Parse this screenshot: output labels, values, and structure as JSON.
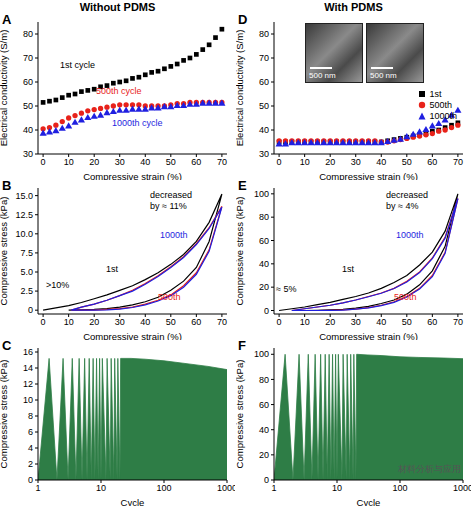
{
  "column_titles": [
    "Without PDMS",
    "With PDMS"
  ],
  "watermark": "材料分析与应用",
  "chart_data": [
    {
      "panel": "A",
      "type": "scatter",
      "x_label": "Compressive strain (%)",
      "y_label": "Electrical conductivity (S/m)",
      "xlim": [
        -2,
        72
      ],
      "ylim": [
        30,
        85
      ],
      "xticks": [
        0,
        10,
        20,
        30,
        40,
        50,
        60,
        70
      ],
      "yticks": [
        30,
        40,
        50,
        60,
        70,
        80
      ],
      "annotations": [
        {
          "text": "1st cycle",
          "color": "#000000"
        },
        {
          "text": "500th cycle",
          "color": "#e8221a"
        },
        {
          "text": "1000th cycle",
          "color": "#1f1fe0"
        }
      ],
      "series": [
        {
          "color": "#000000",
          "marker": "square",
          "x": [
            0,
            2.5,
            5,
            7.5,
            10,
            12.5,
            15,
            17.5,
            20,
            22.5,
            25,
            27.5,
            30,
            32.5,
            35,
            37.5,
            40,
            42.5,
            45,
            47.5,
            50,
            52.5,
            55,
            57.5,
            60,
            62.5,
            65,
            67.5,
            70
          ],
          "values": [
            51.5,
            52,
            52.5,
            53.5,
            54.5,
            55,
            56,
            56.5,
            57,
            58,
            58.5,
            59.5,
            60,
            60.5,
            61.5,
            62,
            63,
            64,
            64.5,
            65.5,
            66.5,
            67.5,
            69,
            70,
            71.5,
            73.5,
            75.5,
            78.5,
            82
          ]
        },
        {
          "color": "#e8221a",
          "marker": "circle",
          "x": [
            0,
            2.5,
            5,
            7.5,
            10,
            12.5,
            15,
            17.5,
            20,
            22.5,
            25,
            27.5,
            30,
            32.5,
            35,
            37.5,
            40,
            42.5,
            45,
            47.5,
            50,
            52.5,
            55,
            57.5,
            60,
            62.5,
            65,
            67.5,
            70
          ],
          "values": [
            40.5,
            41,
            42,
            43.5,
            45,
            46,
            47,
            48,
            48.5,
            49,
            49.5,
            50,
            50.5,
            50.5,
            50.5,
            50.5,
            50,
            50,
            50,
            50,
            50.5,
            51,
            51,
            51.5,
            51.5,
            51.5,
            51.5,
            51.5,
            51.5
          ]
        },
        {
          "color": "#1f1fe0",
          "marker": "triangle",
          "x": [
            0,
            2.5,
            5,
            7.5,
            10,
            12.5,
            15,
            17.5,
            20,
            22.5,
            25,
            27.5,
            30,
            32.5,
            35,
            37.5,
            40,
            42.5,
            45,
            47.5,
            50,
            52.5,
            55,
            57.5,
            60,
            62.5,
            65,
            67.5,
            70
          ],
          "values": [
            38.5,
            39,
            39.5,
            40.5,
            41.5,
            43,
            44,
            45,
            45.5,
            46,
            47,
            47.5,
            48,
            48,
            48.5,
            48.5,
            48.5,
            49,
            49,
            49.5,
            49.5,
            50,
            50,
            50.5,
            50.5,
            51,
            51,
            51,
            51
          ]
        }
      ]
    },
    {
      "panel": "B",
      "type": "line",
      "x_label": "Compressive strain (%)",
      "y_label": "Compressive stress (kPa)",
      "xlim": [
        -2,
        72
      ],
      "ylim": [
        -0.5,
        16
      ],
      "xticks": [
        0,
        10,
        20,
        30,
        40,
        50,
        60,
        70
      ],
      "yticks": [
        0,
        {
          "value": 2.5,
          "label": "2.5"
        },
        {
          "value": 5,
          "label": "5.0"
        },
        {
          "value": 7.5,
          "label": "7.5"
        },
        {
          "value": 10,
          "label": "10.0"
        },
        {
          "value": 12.5,
          "label": "12.5"
        },
        {
          "value": 15,
          "label": "15.0"
        }
      ],
      "annotations": [
        {
          "text": "decreased by ≈ 11%",
          "color": "#000000"
        },
        {
          "text": ">10%",
          "color": "#000000"
        },
        {
          "text": "1st",
          "color": "#000000"
        },
        {
          "text": "500th",
          "color": "#e8221a"
        },
        {
          "text": "1000th",
          "color": "#1f1fe0"
        }
      ],
      "series": [
        {
          "color": "#000000",
          "x": [
            0,
            5,
            10,
            15,
            20,
            25,
            30,
            35,
            40,
            45,
            50,
            55,
            60,
            65,
            70,
            65,
            60,
            55,
            50,
            45,
            40,
            35,
            30,
            25,
            20,
            15,
            10
          ],
          "values": [
            0,
            0.3,
            0.6,
            1,
            1.5,
            2,
            2.6,
            3.2,
            4,
            4.9,
            6,
            7.3,
            9,
            11.5,
            15.2,
            9,
            5.6,
            3.8,
            2.6,
            1.7,
            1.1,
            0.7,
            0.4,
            0.2,
            0.1,
            0.05,
            0
          ]
        },
        {
          "color": "#e8221a",
          "x": [
            11,
            15,
            20,
            25,
            30,
            35,
            40,
            45,
            50,
            55,
            60,
            65,
            70,
            65,
            60,
            55,
            50,
            45,
            40,
            35,
            30,
            25,
            20,
            15,
            11
          ],
          "values": [
            0,
            0.4,
            0.8,
            1.3,
            1.9,
            2.6,
            3.5,
            4.5,
            5.7,
            7,
            8.7,
            10.8,
            13.6,
            7.9,
            4.9,
            3.2,
            2,
            1.3,
            0.8,
            0.4,
            0.2,
            0.1,
            0,
            0,
            0
          ]
        },
        {
          "color": "#1f1fe0",
          "x": [
            11,
            15,
            20,
            25,
            30,
            35,
            40,
            45,
            50,
            55,
            60,
            65,
            70,
            65,
            60,
            55,
            50,
            45,
            40,
            35,
            30,
            25,
            20,
            15,
            11
          ],
          "values": [
            0,
            0.4,
            0.8,
            1.3,
            1.9,
            2.5,
            3.4,
            4.4,
            5.6,
            6.9,
            8.6,
            10.7,
            13.5,
            7.7,
            4.7,
            3,
            1.9,
            1.2,
            0.7,
            0.35,
            0.15,
            0.05,
            0,
            0,
            0
          ]
        }
      ]
    },
    {
      "panel": "C",
      "type": "area",
      "log": "x",
      "x_label": "Cycle",
      "y_label": "Compressive stress (kPa)",
      "xlim": [
        1,
        1000
      ],
      "ylim": [
        0,
        16.5
      ],
      "xticks": [
        1,
        10,
        100,
        1000
      ],
      "yticks": [
        0,
        2,
        4,
        6,
        8,
        10,
        12,
        14,
        16
      ],
      "series": [
        {
          "color": "#2e7d46",
          "x": [
            1,
            1.5,
            2,
            2.5,
            3,
            3.5,
            4,
            4.5,
            5,
            5.5,
            6,
            6.5,
            7,
            7.5,
            8,
            8.5,
            9,
            9.5,
            10,
            10.5,
            12,
            12.5,
            14,
            14.5,
            16,
            16.5,
            18,
            18.5,
            20,
            20.5,
            30,
            50,
            100,
            200,
            500,
            1000
          ],
          "values": [
            0,
            15.2,
            0,
            15.2,
            0,
            15.2,
            0,
            15.2,
            0,
            15.2,
            0,
            15.2,
            0,
            15.2,
            0,
            15.2,
            0,
            15.2,
            0,
            15.2,
            0,
            15.2,
            0,
            15.2,
            0,
            15.2,
            0,
            15.2,
            0,
            15.2,
            15.2,
            15.1,
            14.9,
            14.6,
            14.2,
            13.8
          ]
        }
      ]
    },
    {
      "panel": "D",
      "type": "scatter",
      "x_label": "Compressive strain (%)",
      "y_label": "Electrical conductivity (S/m)",
      "xlim": [
        -2,
        72
      ],
      "ylim": [
        30,
        85
      ],
      "xticks": [
        0,
        10,
        20,
        30,
        40,
        50,
        60,
        70
      ],
      "yticks": [
        30,
        40,
        50,
        60,
        70,
        80
      ],
      "legend": "right",
      "insets": [
        "500 nm",
        "500 nm"
      ],
      "series": [
        {
          "name": "1st",
          "color": "#000000",
          "marker": "square",
          "x": [
            0,
            2.5,
            5,
            7.5,
            10,
            12.5,
            15,
            17.5,
            20,
            22.5,
            25,
            27.5,
            30,
            32.5,
            35,
            37.5,
            40,
            42.5,
            45,
            47.5,
            50,
            52.5,
            55,
            57.5,
            60,
            62.5,
            65,
            67.5,
            70
          ],
          "values": [
            35,
            35,
            35,
            35,
            35,
            35,
            35,
            35,
            35,
            35,
            35,
            35,
            35,
            35,
            35,
            35,
            35,
            35.5,
            36,
            36.5,
            37,
            37.5,
            38,
            38.5,
            39.5,
            40,
            41,
            42,
            43
          ]
        },
        {
          "name": "500th",
          "color": "#e8221a",
          "marker": "circle",
          "x": [
            0,
            2.5,
            5,
            7.5,
            10,
            12.5,
            15,
            17.5,
            20,
            22.5,
            25,
            27.5,
            30,
            32.5,
            35,
            37.5,
            40,
            42.5,
            45,
            47.5,
            50,
            52.5,
            55,
            57.5,
            60,
            62.5,
            65,
            67.5,
            70
          ],
          "values": [
            35.5,
            35.5,
            35.5,
            35.5,
            35.5,
            35.5,
            35.5,
            35.5,
            35.5,
            35.5,
            35.5,
            35.5,
            35.5,
            35.5,
            35.5,
            35.5,
            35,
            35,
            35.5,
            36,
            36.5,
            37,
            37.5,
            38,
            38.5,
            39.5,
            40,
            41,
            42
          ]
        },
        {
          "name": "1000th",
          "color": "#1f1fe0",
          "marker": "triangle",
          "x": [
            0,
            2.5,
            5,
            7.5,
            10,
            12.5,
            15,
            17.5,
            20,
            22.5,
            25,
            27.5,
            30,
            32.5,
            35,
            37.5,
            40,
            42.5,
            45,
            47.5,
            50,
            52.5,
            55,
            57.5,
            60,
            62.5,
            65,
            67.5,
            70
          ],
          "values": [
            34,
            34,
            34.5,
            34.5,
            34.5,
            34.5,
            34.5,
            34.5,
            34.5,
            34.5,
            34.5,
            34.5,
            34.5,
            34.5,
            34.5,
            34.5,
            34.5,
            35,
            35.5,
            36,
            37,
            38,
            39,
            40,
            41.5,
            42.5,
            44,
            46,
            48
          ]
        }
      ]
    },
    {
      "panel": "E",
      "type": "line",
      "x_label": "Compressive strain (%)",
      "y_label": "Compressive stress (kPa)",
      "xlim": [
        -2,
        72
      ],
      "ylim": [
        -3,
        105
      ],
      "xticks": [
        0,
        10,
        20,
        30,
        40,
        50,
        60,
        70
      ],
      "yticks": [
        0,
        20,
        40,
        60,
        80,
        100
      ],
      "annotations": [
        {
          "text": "decreased by ≈ 4%",
          "color": "#000000"
        },
        {
          "text": "≈ 5%",
          "color": "#000000"
        },
        {
          "text": "1st",
          "color": "#000000"
        },
        {
          "text": "500th",
          "color": "#e8221a"
        },
        {
          "text": "1000th",
          "color": "#1f1fe0"
        }
      ],
      "series": [
        {
          "color": "#000000",
          "x": [
            0,
            5,
            10,
            15,
            20,
            25,
            30,
            35,
            40,
            45,
            50,
            55,
            60,
            65,
            70,
            65,
            60,
            55,
            50,
            45,
            40,
            35,
            30,
            25,
            20,
            15,
            10,
            5
          ],
          "values": [
            0,
            1.5,
            3,
            5,
            7,
            9.5,
            12,
            15,
            19,
            24,
            30,
            39,
            50,
            68,
            100,
            55,
            34,
            22,
            14,
            9,
            6,
            3.5,
            2,
            1,
            0.5,
            0.2,
            0,
            0
          ]
        },
        {
          "color": "#e8221a",
          "x": [
            5,
            10,
            15,
            20,
            25,
            30,
            35,
            40,
            45,
            50,
            55,
            60,
            65,
            70,
            65,
            60,
            55,
            50,
            45,
            40,
            35,
            30,
            25,
            20,
            15,
            10,
            5
          ],
          "values": [
            0,
            1.5,
            3,
            4.5,
            6.5,
            9,
            12,
            15,
            19,
            25,
            33,
            45,
            63,
            96,
            50,
            30,
            19,
            12,
            7.5,
            4.5,
            2.5,
            1.2,
            0.5,
            0.2,
            0,
            0,
            0
          ]
        },
        {
          "color": "#1f1fe0",
          "x": [
            5,
            10,
            15,
            20,
            25,
            30,
            35,
            40,
            45,
            50,
            55,
            60,
            65,
            70,
            65,
            60,
            55,
            50,
            45,
            40,
            35,
            30,
            25,
            20,
            15,
            10,
            5
          ],
          "values": [
            0,
            1.5,
            3,
            4.5,
            6.5,
            9,
            11.8,
            14.8,
            18.8,
            24.5,
            32.5,
            44.5,
            62,
            96,
            49,
            29,
            18.5,
            11.5,
            7,
            4.2,
            2.3,
            1.1,
            0.4,
            0.1,
            0,
            0,
            0
          ]
        }
      ]
    },
    {
      "panel": "F",
      "type": "area",
      "log": "x",
      "x_label": "Cycle",
      "y_label": "Compressive stress (kPa)",
      "xlim": [
        1,
        1000
      ],
      "ylim": [
        0,
        105
      ],
      "xticks": [
        1,
        10,
        100,
        1000
      ],
      "yticks": [
        0,
        20,
        40,
        60,
        80,
        100
      ],
      "series": [
        {
          "color": "#2e7d46",
          "x": [
            1,
            1.5,
            2,
            2.5,
            3,
            3.5,
            4,
            4.5,
            5,
            5.5,
            6,
            6.5,
            7,
            7.5,
            8,
            8.5,
            9,
            9.5,
            10,
            10.5,
            12,
            12.5,
            14,
            14.5,
            16,
            16.5,
            18,
            18.5,
            20,
            20.5,
            30,
            50,
            100,
            200,
            500,
            1000
          ],
          "values": [
            0,
            100,
            0,
            100,
            0,
            100,
            0,
            100,
            0,
            100,
            0,
            100,
            0,
            100,
            0,
            100,
            0,
            100,
            0,
            100,
            0,
            100,
            0,
            100,
            0,
            100,
            0,
            100,
            0,
            100,
            99.5,
            99,
            98,
            97.5,
            97,
            96.5
          ]
        }
      ]
    }
  ]
}
